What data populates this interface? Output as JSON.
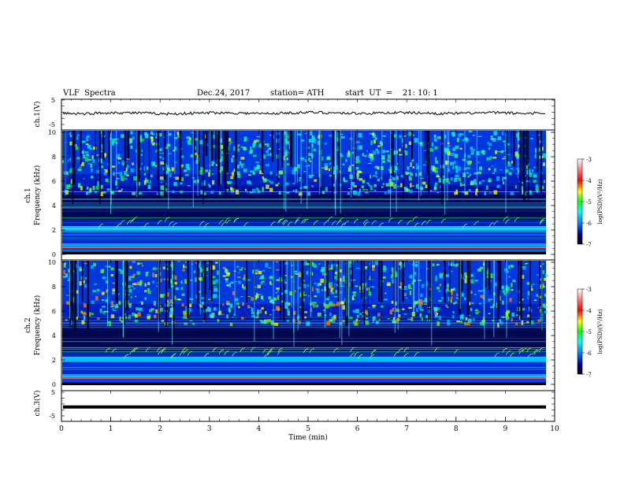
{
  "header": {
    "title": "VLF  Spectra",
    "date": "Dec.24, 2017",
    "station": "station= ATH",
    "start_ut": "start  UT  =    21: 10: 1"
  },
  "chart_data": [
    {
      "type": "line",
      "panel": "ch1-waveform",
      "ylabel": "ch.1(V)",
      "yticks": [
        "5",
        "-5"
      ],
      "ylim": [
        -5,
        5
      ],
      "approx_level": 0.5,
      "series": [
        {
          "values": [
            0.4,
            0.2,
            0.6,
            0.5,
            0.1,
            0.3,
            0.6,
            0.4,
            0.2,
            0.5,
            0.7,
            0.4,
            0.3,
            0.6,
            0.5,
            0.2,
            0.4,
            0.6,
            0.3,
            0.5
          ]
        }
      ]
    },
    {
      "type": "heatmap",
      "panel": "ch1-spectrogram",
      "ylabel": "ch.1\nFrequency (kHz)",
      "ylim": [
        0,
        10
      ],
      "yticks": [
        "0",
        "2",
        "4",
        "6",
        "8",
        "10"
      ],
      "colorbar": {
        "label": "log(PSD)(V²/Hz)",
        "range": [
          -7,
          -3
        ],
        "ticks": [
          "-3",
          "-4",
          "-5",
          "-6",
          "-7"
        ]
      }
    },
    {
      "type": "heatmap",
      "panel": "ch2-spectrogram",
      "ylabel": "ch.2\nFrequency (kHz)",
      "ylim": [
        0,
        10
      ],
      "yticks": [
        "0",
        "2",
        "4",
        "6",
        "8",
        "10"
      ],
      "colorbar": {
        "label": "log(PSD)(V²/Hz)",
        "range": [
          -7,
          -3
        ],
        "ticks": [
          "-3",
          "-4",
          "-5",
          "-6",
          "-7"
        ]
      }
    },
    {
      "type": "line",
      "panel": "ch3-waveform",
      "ylabel": "ch.3(V)",
      "yticks": [
        "5",
        "-5"
      ],
      "ylim": [
        -5,
        5
      ],
      "approx_level": -0.5,
      "series": [
        {
          "values": [
            -0.5,
            -0.5,
            -0.5,
            -0.5,
            -0.5,
            -0.5,
            -0.5,
            -0.5,
            -0.5,
            -0.5
          ]
        }
      ]
    }
  ],
  "x_axis": {
    "label": "Time  (min)",
    "range": [
      0,
      10
    ],
    "ticks": [
      "0",
      "1",
      "2",
      "3",
      "4",
      "5",
      "6",
      "7",
      "8",
      "9",
      "10"
    ]
  }
}
